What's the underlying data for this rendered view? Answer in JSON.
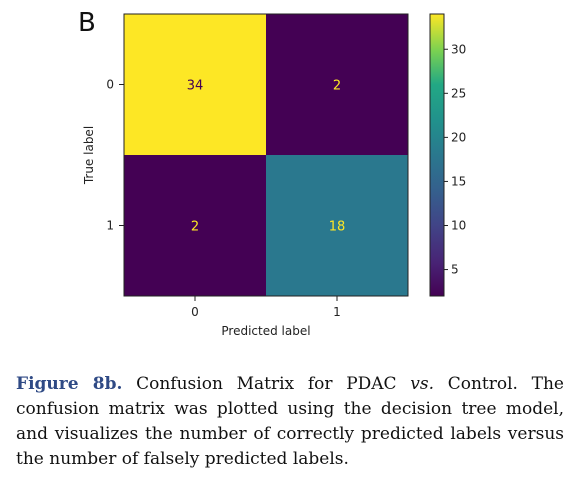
{
  "panel_label": "B",
  "chart_data": {
    "type": "heatmap",
    "title": "",
    "xlabel": "Predicted label",
    "ylabel": "True label",
    "x_tick_labels": [
      "0",
      "1"
    ],
    "y_tick_labels": [
      "0",
      "1"
    ],
    "matrix": [
      [
        34,
        2
      ],
      [
        2,
        18
      ]
    ],
    "colormap": "viridis",
    "colorbar": {
      "ticks": [
        5,
        10,
        15,
        20,
        25,
        30
      ],
      "range": [
        2,
        34
      ]
    },
    "cell_colors": {
      "low": "#440154",
      "mid": "#3a8f87",
      "high": "#fde725"
    },
    "annotation_colors": {
      "on_dark": "#fde725",
      "on_light": "#440154"
    },
    "grid": false
  },
  "caption": {
    "label": "Figure 8b.",
    "text_before_italic": " Confusion Matrix for PDAC ",
    "italic": "vs.",
    "text_after_italic": " Control. The confusion matrix was plotted using the decision tree model, and visualizes the number of correctly predicted labels versus the number of falsely predicted labels."
  }
}
